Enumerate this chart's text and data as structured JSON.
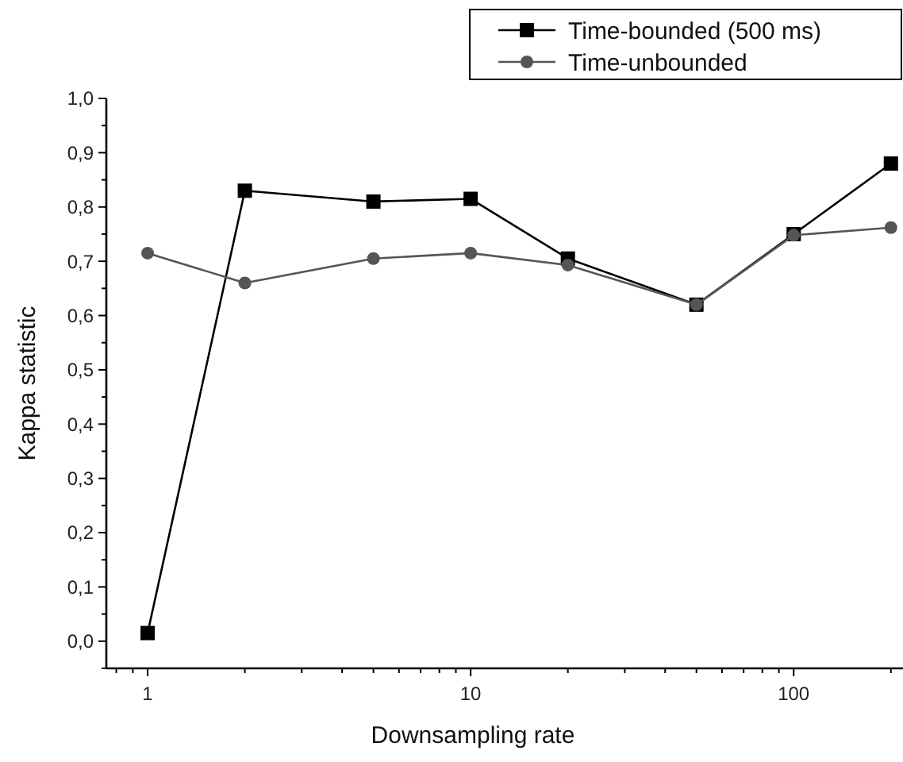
{
  "chart_data": {
    "type": "line",
    "xlabel": "Downsampling rate",
    "ylabel": "Kappa statistic",
    "log": "x",
    "x": [
      1,
      2,
      5,
      10,
      20,
      50,
      100,
      200
    ],
    "series": [
      {
        "name": "Time-bounded (500 ms)",
        "color": "#000000",
        "marker": "square",
        "values": [
          0.015,
          0.83,
          0.81,
          0.815,
          0.705,
          0.62,
          0.75,
          0.88
        ]
      },
      {
        "name": "Time-unbounded",
        "color": "#555555",
        "marker": "circle",
        "values": [
          0.715,
          0.66,
          0.705,
          0.715,
          0.693,
          0.62,
          0.748,
          0.762
        ]
      }
    ],
    "xlim": [
      0.745,
      218
    ],
    "xticks": [
      1,
      10,
      100
    ],
    "ylim": [
      -0.05,
      1.0
    ],
    "yticks": [
      {
        "value": 0,
        "label": "0,0"
      },
      {
        "value": 0.1,
        "label": "0,1"
      },
      {
        "value": 0.2,
        "label": "0,2"
      },
      {
        "value": 0.3,
        "label": "0,3"
      },
      {
        "value": 0.4,
        "label": "0,4"
      },
      {
        "value": 0.5,
        "label": "0,5"
      },
      {
        "value": 0.6,
        "label": "0,6"
      },
      {
        "value": 0.7,
        "label": "0,7"
      },
      {
        "value": 0.8,
        "label": "0,8"
      },
      {
        "value": 0.9,
        "label": "0,9"
      },
      {
        "value": 1.0,
        "label": "1,0"
      }
    ],
    "legend": "top right",
    "grid": false,
    "line_style": "solid"
  }
}
